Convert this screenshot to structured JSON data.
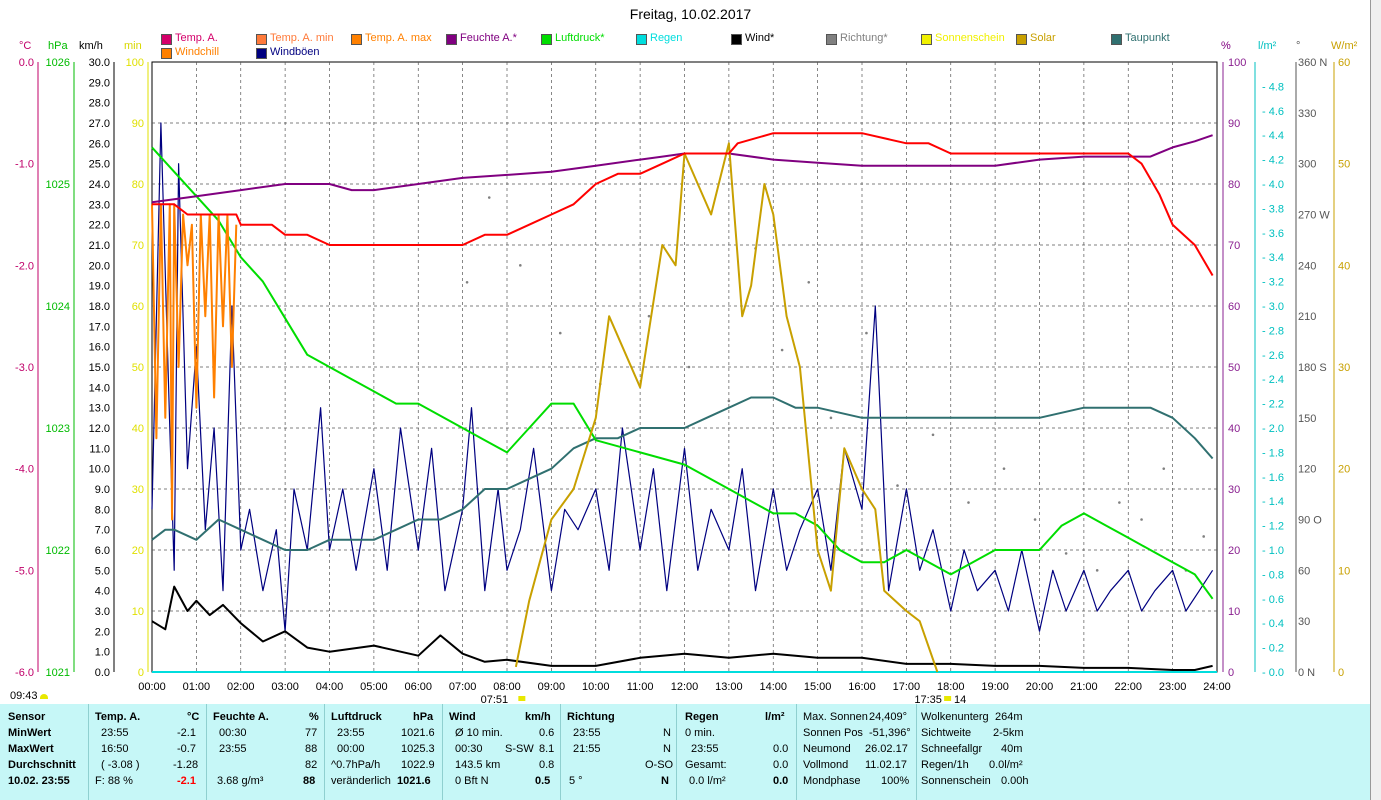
{
  "title": "Freitag, 10.02.2017",
  "legend": [
    {
      "label": "Temp. A.",
      "color": "#d4006a"
    },
    {
      "label": "Temp. A. min",
      "color": "#ff7a3a"
    },
    {
      "label": "Temp. A. max",
      "color": "#ff8000"
    },
    {
      "label": "Feuchte A.*",
      "color": "#800080"
    },
    {
      "label": "Luftdruck*",
      "color": "#00dd00"
    },
    {
      "label": "Regen",
      "color": "#00dddd"
    },
    {
      "label": "Wind*",
      "color": "#000000"
    },
    {
      "label": "Richtung*",
      "color": "#808080"
    },
    {
      "label": "Sonnenschein",
      "color": "#f0f000"
    },
    {
      "label": "Solar",
      "color": "#c8a000"
    },
    {
      "label": "Taupunkt",
      "color": "#307070"
    },
    {
      "label": "Windchill",
      "color": "#ff8000"
    },
    {
      "label": "Windböen",
      "color": "#000080"
    }
  ],
  "axis_units": [
    "°C",
    "hPa",
    "km/h",
    "min",
    "%",
    "l/m²",
    "°",
    "W/m²"
  ],
  "colors": {
    "temp": "#ff0000",
    "humidity": "#800080",
    "pressure": "#00dd00",
    "rain": "#00dddd",
    "wind": "#000000",
    "gust": "#000080",
    "direction": "#808080",
    "solar": "#c8a000",
    "dewpoint": "#307070",
    "windchill": "#ff8000",
    "tempc": "#c0006a",
    "press": "#00bb00",
    "minaxis": "#e0e000",
    "humaxis": "#8a2090",
    "rainaxis": "#00c0c0",
    "solaraxis": "#c8a000"
  },
  "chart_data": {
    "type": "line",
    "x_range_h": [
      0,
      24
    ],
    "x_ticks": [
      "00:00",
      "01:00",
      "02:00",
      "03:00",
      "04:00",
      "05:00",
      "06:00",
      "07:00",
      "08:00",
      "09:00",
      "10:00",
      "11:00",
      "12:00",
      "13:00",
      "14:00",
      "15:00",
      "16:00",
      "17:00",
      "18:00",
      "19:00",
      "20:00",
      "21:00",
      "22:00",
      "23:00",
      "24:00"
    ],
    "axes": {
      "temp_c": {
        "range": [
          -6,
          0
        ],
        "ticks": [
          "0.0",
          "-1.0",
          "-2.0",
          "-3.0",
          "-4.0",
          "-5.0",
          "-6.0"
        ]
      },
      "pressure_hpa": {
        "range": [
          1021,
          1026
        ],
        "ticks": [
          "1026",
          "1025",
          "1024",
          "1023",
          "1022",
          "1021"
        ]
      },
      "wind_kmh": {
        "range": [
          0,
          30
        ],
        "ticks": [
          "30.0",
          "29.0",
          "28.0",
          "27.0",
          "26.0",
          "25.0",
          "24.0",
          "23.0",
          "22.0",
          "21.0",
          "20.0",
          "19.0",
          "18.0",
          "17.0",
          "16.0",
          "15.0",
          "14.0",
          "13.0",
          "12.0",
          "11.0",
          "10.0",
          "9.0",
          "8.0",
          "7.0",
          "6.0",
          "5.0",
          "4.0",
          "3.0",
          "2.0",
          "1.0",
          "0.0"
        ]
      },
      "sun_min": {
        "range": [
          0,
          100
        ],
        "ticks": [
          "100",
          "90",
          "80",
          "70",
          "60",
          "50",
          "40",
          "30",
          "20",
          "10",
          "0"
        ]
      },
      "humidity_pct": {
        "range": [
          0,
          100
        ],
        "ticks": [
          "100",
          "90",
          "80",
          "70",
          "60",
          "50",
          "40",
          "30",
          "20",
          "10",
          "0"
        ]
      },
      "rain_lm2": {
        "range": [
          0,
          5
        ],
        "ticks": [
          "4.8",
          "4.6",
          "4.4",
          "4.2",
          "4.0",
          "3.8",
          "3.6",
          "3.4",
          "3.2",
          "3.0",
          "2.8",
          "2.6",
          "2.4",
          "2.2",
          "2.0",
          "1.8",
          "1.6",
          "1.4",
          "1.2",
          "1.0",
          "0.8",
          "0.6",
          "0.4",
          "0.2",
          "0.0"
        ]
      },
      "direction_deg": {
        "range": [
          0,
          360
        ],
        "ticks": [
          "360 N",
          "330",
          "300",
          "270 W",
          "240",
          "210",
          "180 S",
          "150",
          "120",
          "90 O",
          "60",
          "30",
          "0 N"
        ]
      },
      "solar_wm2": {
        "range": [
          0,
          60
        ],
        "ticks": [
          "60",
          "50",
          "40",
          "30",
          "20",
          "10",
          "0"
        ]
      }
    },
    "series": [
      {
        "name": "Temp. A.",
        "axis": "temp_c",
        "color": "#ff0000",
        "x": [
          0,
          0.3,
          0.5,
          0.8,
          1.0,
          1.2,
          1.5,
          1.9,
          2.0,
          2.3,
          2.7,
          3.0,
          3.5,
          4.0,
          5.0,
          6.0,
          7.0,
          7.5,
          8.0,
          8.5,
          9.0,
          9.5,
          10.0,
          10.5,
          11.0,
          11.5,
          12.0,
          12.5,
          13.0,
          13.2,
          14.0,
          14.5,
          15.0,
          15.5,
          16.0,
          17.0,
          17.5,
          18.0,
          19.0,
          20.0,
          21.0,
          22.0,
          22.3,
          22.7,
          23.0,
          23.5,
          23.9
        ],
        "y": [
          -1.4,
          -1.4,
          -1.4,
          -1.5,
          -1.5,
          -1.5,
          -1.5,
          -1.5,
          -1.6,
          -1.6,
          -1.6,
          -1.7,
          -1.7,
          -1.8,
          -1.8,
          -1.8,
          -1.8,
          -1.7,
          -1.7,
          -1.6,
          -1.5,
          -1.4,
          -1.2,
          -1.1,
          -1.1,
          -1.0,
          -0.9,
          -0.9,
          -0.9,
          -0.8,
          -0.7,
          -0.7,
          -0.7,
          -0.7,
          -0.7,
          -0.8,
          -0.8,
          -0.9,
          -0.9,
          -0.9,
          -0.9,
          -0.9,
          -1.0,
          -1.3,
          -1.6,
          -1.8,
          -2.1
        ]
      },
      {
        "name": "Feuchte A.*",
        "axis": "humidity_pct",
        "color": "#800080",
        "x": [
          0,
          0.5,
          1.0,
          2.0,
          3.0,
          4.0,
          4.5,
          5.0,
          6.0,
          7.0,
          8.0,
          9.0,
          10.0,
          11.0,
          11.5,
          12.0,
          13.0,
          14.0,
          15.0,
          16.0,
          17.0,
          18.0,
          19.0,
          20.0,
          21.0,
          22.0,
          22.5,
          23.0,
          23.5,
          23.9
        ],
        "y": [
          77,
          77.5,
          78,
          79,
          80,
          80,
          79,
          79,
          80,
          81,
          81.5,
          82,
          83,
          84,
          84.5,
          85,
          85,
          84,
          83.5,
          83,
          83,
          83,
          83,
          84,
          84.5,
          84.5,
          84.5,
          86,
          87,
          88
        ]
      },
      {
        "name": "Luftdruck*",
        "axis": "pressure_hpa",
        "color": "#00dd00",
        "x": [
          0,
          0.5,
          1.0,
          1.5,
          2.0,
          2.5,
          3.0,
          3.5,
          4.0,
          4.5,
          5.0,
          5.5,
          6.0,
          7.0,
          7.5,
          8.0,
          8.5,
          9.0,
          9.5,
          10.0,
          11.0,
          12.0,
          13.0,
          13.5,
          14.0,
          14.5,
          15.0,
          15.5,
          16.0,
          16.5,
          17.0,
          18.0,
          19.0,
          20.0,
          20.5,
          21.0,
          21.5,
          22.0,
          22.5,
          23.0,
          23.5,
          23.9
        ],
        "y": [
          1025.3,
          1025.1,
          1024.9,
          1024.7,
          1024.4,
          1024.2,
          1023.9,
          1023.6,
          1023.5,
          1023.4,
          1023.3,
          1023.2,
          1023.2,
          1023.0,
          1022.9,
          1022.8,
          1023.0,
          1023.2,
          1023.2,
          1022.9,
          1022.8,
          1022.7,
          1022.5,
          1022.4,
          1022.3,
          1022.3,
          1022.2,
          1022.0,
          1021.9,
          1021.9,
          1022.0,
          1021.8,
          1022.0,
          1022.0,
          1022.2,
          1022.3,
          1022.2,
          1022.1,
          1022.0,
          1021.9,
          1021.8,
          1021.6
        ]
      },
      {
        "name": "Taupunkt",
        "axis": "temp_c",
        "color": "#307070",
        "x": [
          0,
          0.3,
          0.5,
          1.0,
          1.5,
          2.0,
          2.5,
          3.0,
          3.5,
          4.0,
          4.5,
          5.0,
          5.5,
          6.0,
          6.5,
          7.0,
          7.5,
          8.0,
          8.5,
          9.0,
          9.5,
          10.0,
          10.5,
          11.0,
          12.0,
          12.5,
          13.0,
          13.5,
          14.0,
          14.5,
          15.0,
          16.0,
          17.0,
          18.0,
          19.0,
          20.0,
          21.0,
          22.0,
          22.5,
          23.0,
          23.5,
          23.9
        ],
        "y": [
          -4.7,
          -4.6,
          -4.6,
          -4.7,
          -4.5,
          -4.6,
          -4.7,
          -4.8,
          -4.8,
          -4.7,
          -4.7,
          -4.7,
          -4.6,
          -4.5,
          -4.5,
          -4.4,
          -4.2,
          -4.2,
          -4.1,
          -4.0,
          -3.8,
          -3.7,
          -3.7,
          -3.6,
          -3.6,
          -3.5,
          -3.4,
          -3.3,
          -3.3,
          -3.4,
          -3.4,
          -3.5,
          -3.5,
          -3.5,
          -3.5,
          -3.5,
          -3.4,
          -3.4,
          -3.4,
          -3.5,
          -3.7,
          -3.9
        ]
      },
      {
        "name": "Solar",
        "axis": "solar_wm2",
        "color": "#c8a000",
        "x": [
          8.2,
          8.5,
          9.0,
          9.5,
          10.0,
          10.3,
          10.6,
          11.0,
          11.5,
          11.8,
          12.0,
          12.3,
          12.6,
          13.0,
          13.3,
          13.5,
          13.8,
          14.0,
          14.3,
          14.6,
          15.0,
          15.3,
          15.6,
          16.0,
          16.3,
          16.5,
          17.0,
          17.3,
          17.7
        ],
        "y": [
          0.5,
          7,
          15,
          18,
          25,
          35,
          32,
          28,
          42,
          40,
          51,
          48,
          45,
          52,
          35,
          38,
          48,
          45,
          35,
          30,
          12,
          8,
          22,
          18,
          16,
          8,
          6,
          5,
          0
        ]
      },
      {
        "name": "Windböen",
        "axis": "wind_kmh",
        "color": "#000080",
        "x": [
          0,
          0.2,
          0.4,
          0.5,
          0.6,
          0.8,
          1.0,
          1.2,
          1.4,
          1.6,
          1.8,
          2.0,
          2.2,
          2.5,
          2.8,
          3.0,
          3.2,
          3.5,
          3.8,
          4.0,
          4.3,
          4.6,
          5.0,
          5.3,
          5.6,
          6.0,
          6.3,
          6.6,
          7.0,
          7.2,
          7.5,
          7.8,
          8.0,
          8.3,
          8.6,
          9.0,
          9.3,
          9.6,
          10.0,
          10.3,
          10.6,
          11.0,
          11.3,
          11.6,
          12.0,
          12.3,
          12.6,
          13.0,
          13.3,
          13.6,
          14.0,
          14.3,
          14.6,
          15.0,
          15.3,
          15.6,
          16.0,
          16.3,
          16.6,
          17.0,
          17.3,
          17.6,
          18.0,
          18.3,
          18.6,
          19.0,
          19.3,
          19.6,
          20.0,
          20.3,
          20.6,
          21.0,
          21.3,
          21.6,
          22.0,
          22.3,
          22.6,
          23.0,
          23.3,
          23.6,
          23.9
        ],
        "y": [
          8,
          27,
          12,
          5,
          25,
          10,
          16,
          7,
          12,
          4,
          18,
          6,
          8,
          4,
          7,
          2,
          9,
          6,
          13,
          6,
          9,
          5,
          10,
          5,
          12,
          6,
          11,
          4,
          8,
          13,
          4,
          9,
          5,
          7,
          11,
          4,
          8,
          7,
          9,
          5,
          12,
          6,
          10,
          4,
          11,
          5,
          8,
          6,
          10,
          4,
          9,
          5,
          7,
          9,
          5,
          11,
          8,
          18,
          4,
          9,
          5,
          7,
          3,
          6,
          4,
          5,
          3,
          6,
          2,
          5,
          3,
          5,
          3,
          4,
          5,
          3,
          4,
          5,
          3,
          4,
          5
        ]
      },
      {
        "name": "Wind*",
        "axis": "wind_kmh",
        "color": "#000000",
        "x": [
          0,
          0.3,
          0.5,
          0.8,
          1.0,
          1.3,
          1.6,
          2.0,
          2.5,
          3.0,
          3.5,
          4.0,
          5.0,
          6.0,
          6.5,
          7.0,
          7.5,
          8.0,
          9.0,
          10.0,
          11.0,
          12.0,
          13.0,
          14.0,
          15.0,
          16.0,
          17.0,
          18.0,
          19.0,
          20.0,
          21.0,
          22.0,
          23.0,
          23.5,
          23.9
        ],
        "y": [
          2.5,
          2.1,
          4.2,
          3.0,
          3.5,
          2.8,
          3.3,
          2.4,
          1.5,
          2.0,
          1.2,
          1.0,
          1.3,
          0.8,
          1.8,
          0.9,
          0.5,
          0.6,
          0.3,
          0.3,
          0.7,
          0.9,
          0.7,
          0.9,
          0.7,
          0.7,
          0.4,
          0.4,
          0.3,
          0.3,
          0.2,
          0.2,
          0.1,
          0.1,
          0.3
        ]
      },
      {
        "name": "Windchill",
        "axis": "temp_c",
        "color": "#ff8000",
        "x": [
          0,
          0.1,
          0.2,
          0.3,
          0.4,
          0.45,
          0.5,
          0.6,
          0.7,
          0.8,
          0.9,
          1.0,
          1.1,
          1.2,
          1.3,
          1.4,
          1.5,
          1.6,
          1.7,
          1.8,
          1.9
        ],
        "y": [
          -1.4,
          -3.7,
          -1.4,
          -3.5,
          -1.4,
          -4.5,
          -1.4,
          -3.0,
          -1.5,
          -2.0,
          -1.6,
          -3.4,
          -1.5,
          -2.5,
          -1.5,
          -3.3,
          -1.5,
          -2.6,
          -1.5,
          -3.0,
          -1.6
        ]
      },
      {
        "name": "Regen",
        "axis": "rain_lm2",
        "color": "#00dddd",
        "x": [
          0,
          24
        ],
        "y": [
          0,
          0
        ]
      }
    ],
    "direction_points": [
      [
        7.1,
        230
      ],
      [
        7.6,
        280
      ],
      [
        8.3,
        240
      ],
      [
        9.2,
        200
      ],
      [
        10.1,
        170
      ],
      [
        10.6,
        140
      ],
      [
        11.2,
        210
      ],
      [
        12.1,
        180
      ],
      [
        13.0,
        160
      ],
      [
        13.6,
        250
      ],
      [
        14.2,
        190
      ],
      [
        14.8,
        230
      ],
      [
        15.3,
        150
      ],
      [
        16.1,
        200
      ],
      [
        16.8,
        110
      ],
      [
        17.6,
        140
      ],
      [
        18.4,
        100
      ],
      [
        19.2,
        120
      ],
      [
        19.9,
        90
      ],
      [
        20.6,
        70
      ],
      [
        21.3,
        60
      ],
      [
        21.8,
        100
      ],
      [
        22.3,
        90
      ],
      [
        22.8,
        120
      ],
      [
        23.3,
        60
      ],
      [
        23.7,
        80
      ]
    ],
    "time_markers": [
      "07:51",
      "17:35"
    ],
    "time_marker_suffix": "14",
    "start_time": "09:43"
  },
  "stats": {
    "sensor": {
      "header": "Sensor",
      "min": "MinWert",
      "max": "MaxWert",
      "avg": "Durchschnitt",
      "date": "10.02. 23:55"
    },
    "temp": {
      "header": "Temp. A.",
      "unit": "°C",
      "min_time": "23:55",
      "min_val": "-2.1",
      "max_time": "16:50",
      "max_val": "-0.7",
      "avg_val": "-1.28",
      "avg_extra": "( -3.08 )",
      "f_label": "F: 88 %",
      "current": "-2.1"
    },
    "humidity": {
      "header": "Feuchte A.",
      "unit": "%",
      "min_time": "00:30",
      "min_val": "77",
      "max_time": "23:55",
      "max_val": "88",
      "avg_val": "82",
      "abs": "3.68 g/m³",
      "current": "88"
    },
    "pressure": {
      "header": "Luftdruck",
      "unit": "hPa",
      "min_time": "23:55",
      "min_val": "1021.6",
      "max_time": "00:00",
      "max_val": "1025.3",
      "trend": "^0.7hPa/h",
      "avg_val": "1022.9",
      "state": "veränderlich",
      "current": "1021.6"
    },
    "wind": {
      "header": "Wind",
      "unit": "km/h",
      "r1_label": "Ø 10 min.",
      "r1_val": "0.6",
      "r2_time": "00:30",
      "r2_dir": "S-SW",
      "r2_val": "8.1",
      "r3_label": "143.5 km",
      "r3_val": "0.8",
      "r4_label": "0 Bft N",
      "r4_val": "0.5"
    },
    "direction": {
      "header": "Richtung",
      "r1_time": "23:55",
      "r1_val": "N",
      "r2_time": "21:55",
      "r2_val": "N",
      "r3_val": "O-SO",
      "r4_label": "5 °",
      "r4_val": "N"
    },
    "rain": {
      "header": "Regen",
      "unit": "l/m²",
      "r1_label": "0 min.",
      "r2_time": "23:55",
      "r2_val": "0.0",
      "r3_label": "Gesamt:",
      "r3_val": "0.0",
      "r4_label": "0.0 l/m²",
      "r4_val": "0.0"
    },
    "sun": {
      "max_sun_label": "Max. Sonnen",
      "max_sun_val": "24,409°",
      "sun_pos_label": "Sonnen Pos",
      "sun_pos_val": "-51,396°",
      "newmoon_label": "Neumond",
      "newmoon_val": "26.02.17",
      "fullmoon_label": "Vollmond",
      "fullmoon_val": "11.02.17",
      "moonphase_label": "Mondphase",
      "moonphase_val": "100%"
    },
    "weather": {
      "cloud_label": "Wolkenunterg",
      "cloud_val": "264m",
      "vis_label": "Sichtweite",
      "vis_val": "2-5km",
      "snow_label": "Schneefallgr",
      "snow_val": "40m",
      "rainh_label": "Regen/1h",
      "rainh_val": "0.0l/m²",
      "sunshine_label": "Sonnenschein",
      "sunshine_val": "0.00h"
    }
  }
}
